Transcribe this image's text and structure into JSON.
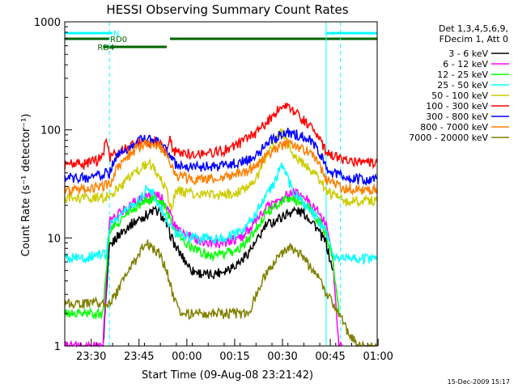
{
  "chart_data": {
    "type": "line",
    "title": "HESSI Observing Summary Count Rates",
    "xlabel": "Start Time (09-Aug-08 23:21:42)",
    "ylabel": "Count Rate (s⁻¹ detector⁻¹)",
    "y_scale": "log",
    "ylim": [
      1,
      1000
    ],
    "xlim_minutes_after_start": [
      0,
      98
    ],
    "x_tick_labels": [
      "23:30",
      "23:45",
      "00:00",
      "00:15",
      "00:30",
      "00:45",
      "01:00"
    ],
    "x_tick_minutes_after_start": [
      8.3,
      23.3,
      38.3,
      53.3,
      68.3,
      83.3,
      98.3
    ],
    "y_tick_labels": [
      "1",
      "10",
      "100",
      "1000"
    ],
    "y_tick_values": [
      1,
      10,
      100,
      1000
    ],
    "legend_header": [
      "Det 1,3,4,5,6,9,",
      "FDecim 1, Att 0"
    ],
    "legend_placement": "right",
    "footer": "15-Dec-2009 15:17",
    "flags": [
      {
        "name": "N",
        "color": "#00ffff",
        "segments": [
          [
            0,
            15
          ],
          [
            82,
            98
          ]
        ],
        "label_at": 15
      },
      {
        "name": "RD0",
        "color": "#006400",
        "segments": [
          [
            0,
            14
          ],
          [
            33,
            98
          ]
        ],
        "label_at": 14
      },
      {
        "name": "RD4",
        "color": "#006400",
        "segments": [
          [
            12,
            32
          ]
        ],
        "label_at": 10
      }
    ],
    "marker_lines": [
      {
        "x": 0,
        "style": "solid"
      },
      {
        "x": 14,
        "style": "dashed"
      },
      {
        "x": 82,
        "style": "solid"
      },
      {
        "x": 86.5,
        "style": "dashed"
      }
    ],
    "series": [
      {
        "name": "3 - 6 keV",
        "color": "#000000",
        "x": [
          12,
          14,
          16,
          20,
          25,
          28,
          30,
          32,
          35,
          40,
          45,
          50,
          55,
          60,
          63,
          67,
          70,
          72,
          75,
          78,
          80,
          82,
          84
        ],
        "y": [
          1,
          8,
          10,
          13,
          16,
          18,
          17,
          13,
          8,
          5,
          4.5,
          5,
          6,
          9,
          13,
          15,
          17,
          18,
          17,
          14,
          11,
          9,
          5
        ]
      },
      {
        "name": "6 - 12 keV",
        "color": "#ff00ff",
        "x": [
          0,
          10,
          11,
          12,
          14,
          16,
          20,
          25,
          28,
          30,
          32,
          35,
          40,
          45,
          50,
          55,
          60,
          63,
          67,
          70,
          72,
          75,
          78,
          80,
          82,
          84,
          86,
          87
        ],
        "y": [
          1,
          1,
          1,
          1,
          14,
          16,
          20,
          24,
          25,
          24,
          20,
          12,
          10,
          9,
          9,
          10,
          14,
          19,
          22,
          25,
          26,
          24,
          20,
          17,
          13,
          7,
          1,
          1
        ]
      },
      {
        "name": "12 - 25 keV",
        "color": "#00ff00",
        "x": [
          0,
          10,
          12,
          14,
          16,
          20,
          25,
          28,
          30,
          32,
          35,
          40,
          45,
          50,
          55,
          60,
          63,
          67,
          70,
          72,
          75,
          78,
          80,
          82,
          84,
          86
        ],
        "y": [
          2,
          2,
          2,
          12,
          13,
          17,
          22,
          23,
          22,
          18,
          11,
          8,
          7,
          7,
          8,
          12,
          17,
          21,
          23,
          23,
          21,
          17,
          14,
          11,
          7,
          2
        ]
      },
      {
        "name": "25 - 50 keV",
        "color": "#00ffff",
        "x": [
          0,
          6,
          10,
          13,
          14,
          16,
          20,
          24,
          26,
          28,
          30,
          32,
          35,
          40,
          45,
          50,
          55,
          60,
          63,
          66,
          68,
          70,
          72,
          75,
          78,
          80,
          82,
          84,
          86,
          88,
          92,
          98
        ],
        "y": [
          6.5,
          6.5,
          7,
          7,
          13,
          15,
          19,
          24,
          30,
          25,
          19,
          15,
          11,
          10,
          10,
          10,
          11,
          17,
          25,
          33,
          50,
          35,
          26,
          21,
          17,
          14,
          11,
          7,
          6.5,
          6.5,
          6.5,
          6.5
        ]
      },
      {
        "name": "50 - 100 keV",
        "color": "#cccc00",
        "x": [
          0,
          6,
          10,
          12,
          14,
          16,
          20,
          24,
          26,
          28,
          30,
          32,
          33,
          35,
          40,
          45,
          50,
          55,
          60,
          63,
          66,
          68,
          70,
          72,
          75,
          78,
          80,
          82,
          84,
          86,
          88,
          92,
          98
        ],
        "y": [
          23,
          23,
          24,
          24,
          25,
          28,
          35,
          45,
          50,
          45,
          35,
          28,
          18,
          27,
          26,
          25,
          25,
          27,
          35,
          55,
          75,
          100,
          75,
          57,
          48,
          40,
          34,
          28,
          25,
          23,
          22,
          22,
          22
        ]
      },
      {
        "name": "100 - 300 keV",
        "color": "#ff0000",
        "x": [
          0,
          6,
          10,
          12,
          13,
          14,
          16,
          20,
          24,
          28,
          30,
          32,
          33,
          34,
          35,
          40,
          45,
          50,
          55,
          60,
          63,
          66,
          68,
          70,
          72,
          75,
          78,
          80,
          82,
          84,
          86,
          88,
          92,
          98
        ],
        "y": [
          48,
          48,
          52,
          60,
          82,
          55,
          60,
          70,
          78,
          78,
          72,
          60,
          80,
          65,
          62,
          60,
          62,
          65,
          75,
          95,
          115,
          145,
          175,
          160,
          150,
          125,
          100,
          80,
          65,
          58,
          55,
          53,
          50,
          50
        ]
      },
      {
        "name": "300 - 800 keV",
        "color": "#0000ff",
        "x": [
          0,
          6,
          10,
          14,
          16,
          20,
          24,
          28,
          30,
          32,
          35,
          40,
          45,
          50,
          55,
          60,
          63,
          66,
          68,
          70,
          72,
          75,
          78,
          80,
          82,
          84,
          86,
          88,
          92,
          98
        ],
        "y": [
          36,
          36,
          38,
          40,
          55,
          70,
          82,
          80,
          75,
          62,
          47,
          45,
          46,
          47,
          50,
          58,
          72,
          85,
          92,
          95,
          92,
          87,
          77,
          62,
          45,
          40,
          38,
          36,
          35,
          35
        ]
      },
      {
        "name": "800 - 7000 keV",
        "color": "#ff8000",
        "x": [
          0,
          6,
          10,
          14,
          16,
          20,
          24,
          28,
          30,
          32,
          35,
          40,
          45,
          50,
          55,
          60,
          63,
          66,
          68,
          70,
          72,
          75,
          78,
          80,
          82,
          84,
          86,
          88,
          92,
          98
        ],
        "y": [
          28,
          28,
          30,
          31,
          42,
          58,
          73,
          75,
          70,
          56,
          38,
          35,
          36,
          37,
          39,
          46,
          57,
          66,
          72,
          75,
          73,
          67,
          58,
          46,
          35,
          32,
          30,
          29,
          28,
          28
        ]
      },
      {
        "name": "7000 - 20000 keV",
        "color": "#808000",
        "x": [
          0,
          10,
          12,
          14,
          16,
          18,
          20,
          22,
          24,
          26,
          28,
          30,
          32,
          34,
          36,
          40,
          45,
          50,
          55,
          58,
          60,
          62,
          64,
          66,
          68,
          70,
          72,
          74,
          76,
          78,
          80,
          82,
          84,
          86,
          88,
          92,
          98
        ],
        "y": [
          2.5,
          2.5,
          2.5,
          2.5,
          3,
          4,
          5,
          6,
          8,
          9,
          8,
          7,
          5,
          3,
          2,
          2,
          2,
          2,
          2,
          2,
          3,
          4,
          5,
          6,
          7,
          8,
          8,
          7,
          6,
          5,
          4,
          3,
          2.5,
          2,
          1.5,
          1,
          1
        ]
      }
    ]
  }
}
